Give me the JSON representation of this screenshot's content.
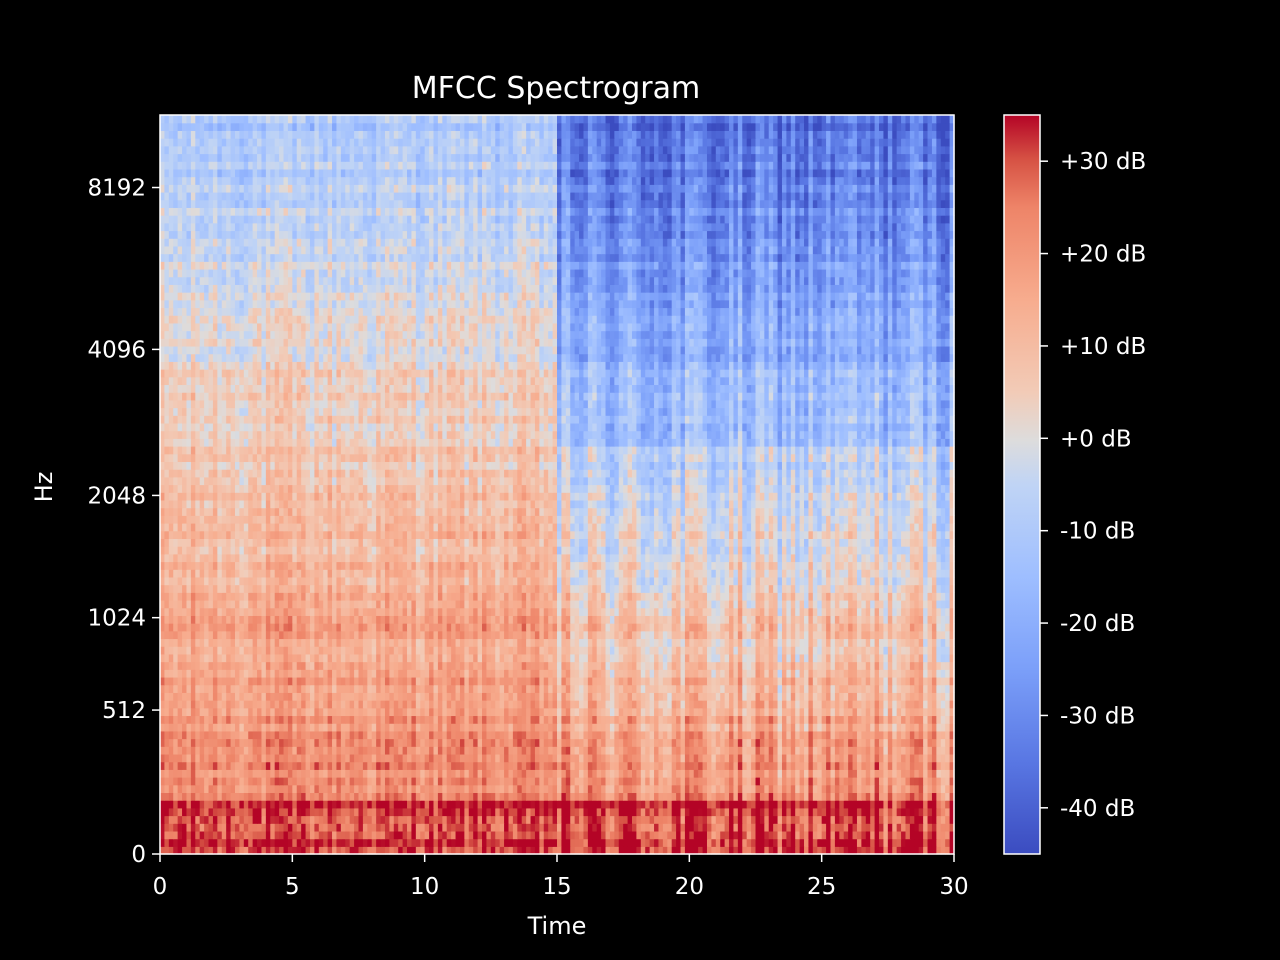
{
  "chart_data": {
    "type": "heatmap",
    "title": "MFCC Spectrogram",
    "xlabel": "Time",
    "ylabel": "Hz",
    "xlim": [
      0,
      30
    ],
    "x_ticks": [
      0,
      5,
      10,
      15,
      20,
      25,
      30
    ],
    "x_tick_labels": [
      "0",
      "5",
      "10",
      "15",
      "20",
      "25",
      "30"
    ],
    "y_scale": "mel",
    "ylim_hz": [
      0,
      11025
    ],
    "y_ticks_hz": [
      0,
      512,
      1024,
      2048,
      4096,
      8192
    ],
    "y_tick_labels": [
      "0",
      "512",
      "1024",
      "2048",
      "4096",
      "8192"
    ],
    "colormap": "coolwarm",
    "colorbar": {
      "range_db": [
        -45,
        35
      ],
      "ticks_db": [
        30,
        20,
        10,
        0,
        -10,
        -20,
        -30,
        -40
      ],
      "tick_labels": [
        "+30 dB",
        "+20 dB",
        "+10 dB",
        "+0 dB",
        "-10 dB",
        "-20 dB",
        "-30 dB",
        "-40 dB"
      ]
    },
    "grid": false,
    "background_color": "#000000",
    "foreground_color": "#ffffff"
  }
}
